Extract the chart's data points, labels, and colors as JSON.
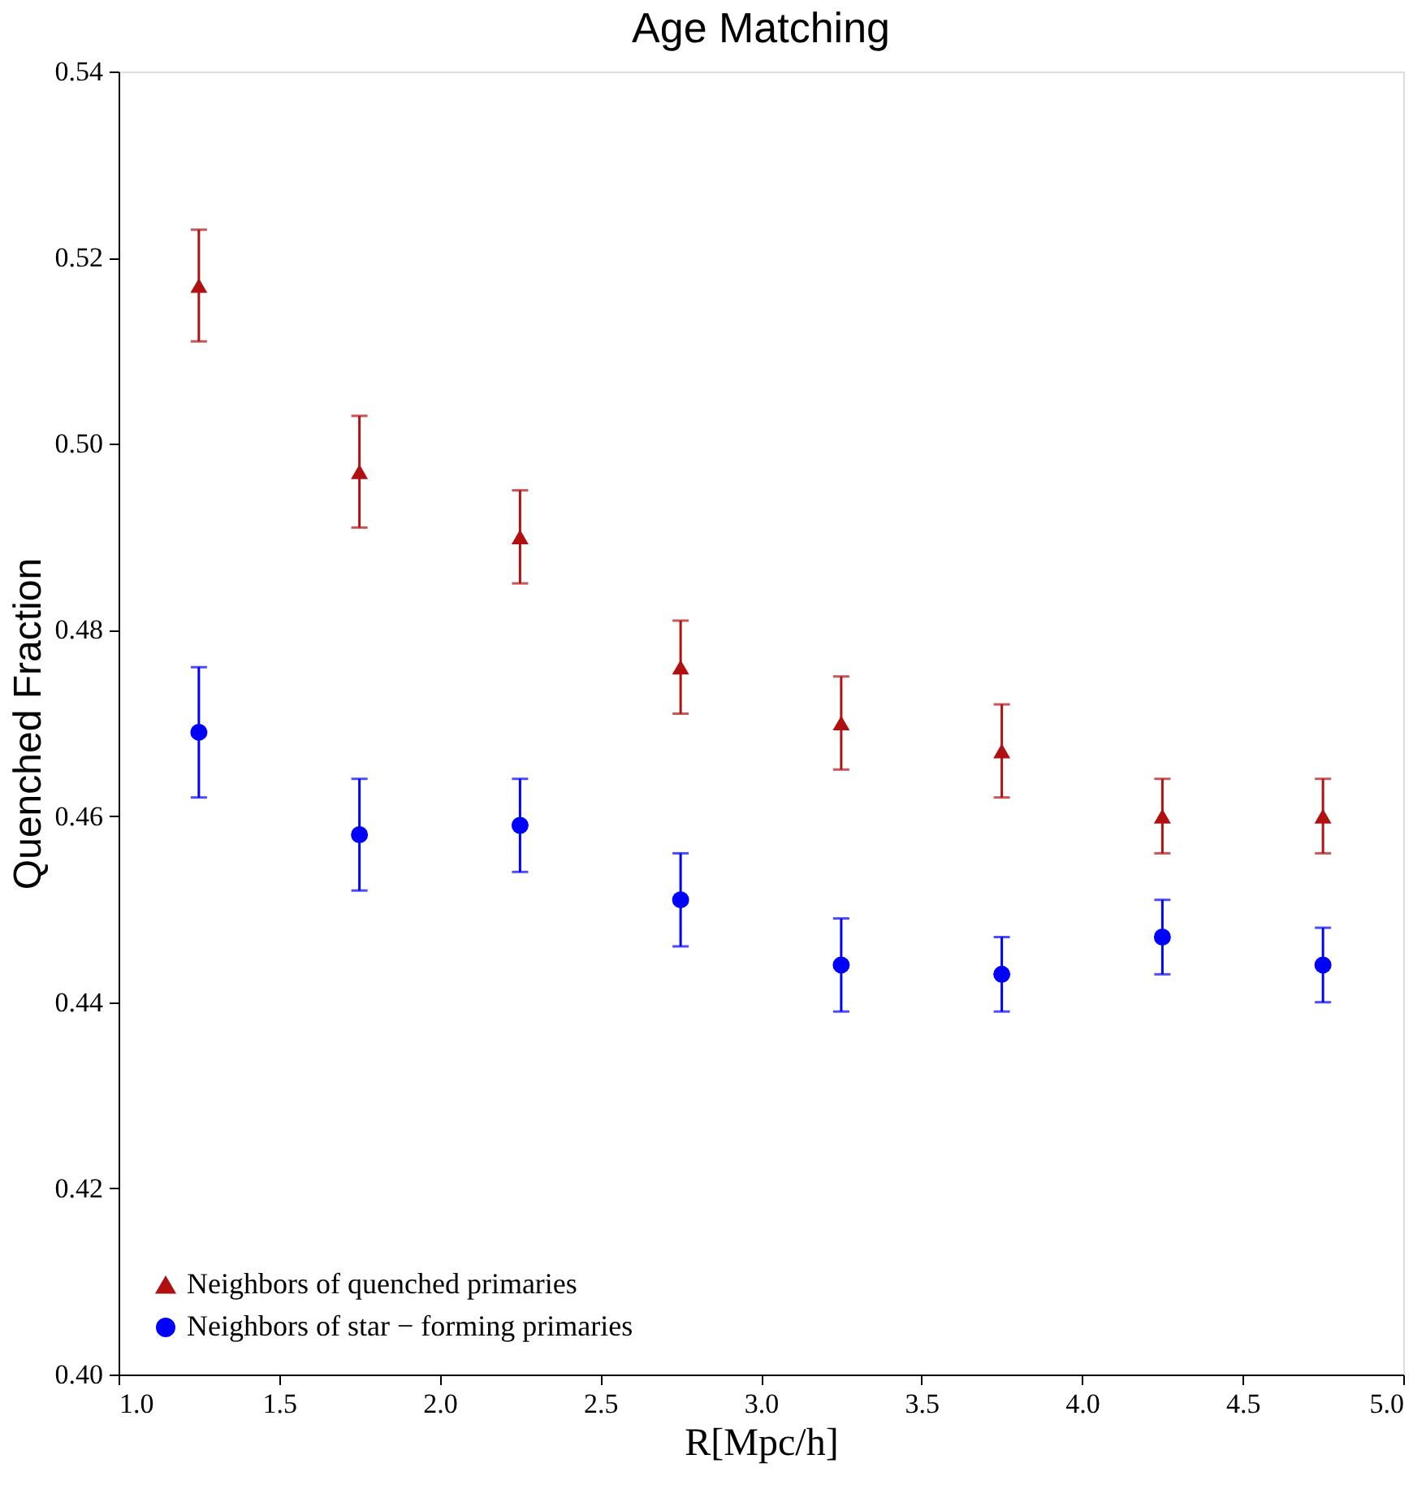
{
  "chart_data": {
    "type": "scatter",
    "title": "Age Matching",
    "xlabel": "R[Mpc/h]",
    "ylabel": "Quenched Fraction",
    "x": [
      1.25,
      1.75,
      2.25,
      2.75,
      3.25,
      3.75,
      4.25,
      4.75
    ],
    "series": [
      {
        "name": "Neighbors of quenched primaries",
        "color": "#b01010",
        "marker": "triangle",
        "values": [
          0.517,
          0.497,
          0.49,
          0.476,
          0.47,
          0.467,
          0.46,
          0.46
        ],
        "errors": [
          [
            0.511,
            0.523
          ],
          [
            0.491,
            0.503
          ],
          [
            0.485,
            0.495
          ],
          [
            0.471,
            0.481
          ],
          [
            0.465,
            0.475
          ],
          [
            0.462,
            0.472
          ],
          [
            0.456,
            0.464
          ],
          [
            0.456,
            0.464
          ]
        ]
      },
      {
        "name": "Neighbors of star − forming primaries",
        "color": "#0000ff",
        "marker": "circle",
        "values": [
          0.469,
          0.458,
          0.459,
          0.451,
          0.444,
          0.443,
          0.447,
          0.444
        ],
        "errors": [
          [
            0.462,
            0.476
          ],
          [
            0.452,
            0.464
          ],
          [
            0.454,
            0.464
          ],
          [
            0.446,
            0.456
          ],
          [
            0.439,
            0.449
          ],
          [
            0.439,
            0.447
          ],
          [
            0.443,
            0.451
          ],
          [
            0.44,
            0.448
          ]
        ]
      }
    ],
    "xlim": [
      1.0,
      5.0
    ],
    "xticks": [
      {
        "value": 1,
        "label": "1.0"
      },
      1.5,
      {
        "value": 2,
        "label": "2.0"
      },
      2.5,
      {
        "value": 3,
        "label": "3.0"
      },
      3.5,
      {
        "value": 4,
        "label": "4.0"
      },
      4.5,
      {
        "value": 5,
        "label": "5.0"
      }
    ],
    "ylim": [
      0.4,
      0.54
    ],
    "yticks": [
      {
        "value": 0.4,
        "label": "0.40"
      },
      0.42,
      0.44,
      0.46,
      0.48,
      {
        "value": 0.5,
        "label": "0.50"
      },
      0.52,
      0.54
    ],
    "grid": false,
    "legend": "bottom left"
  }
}
